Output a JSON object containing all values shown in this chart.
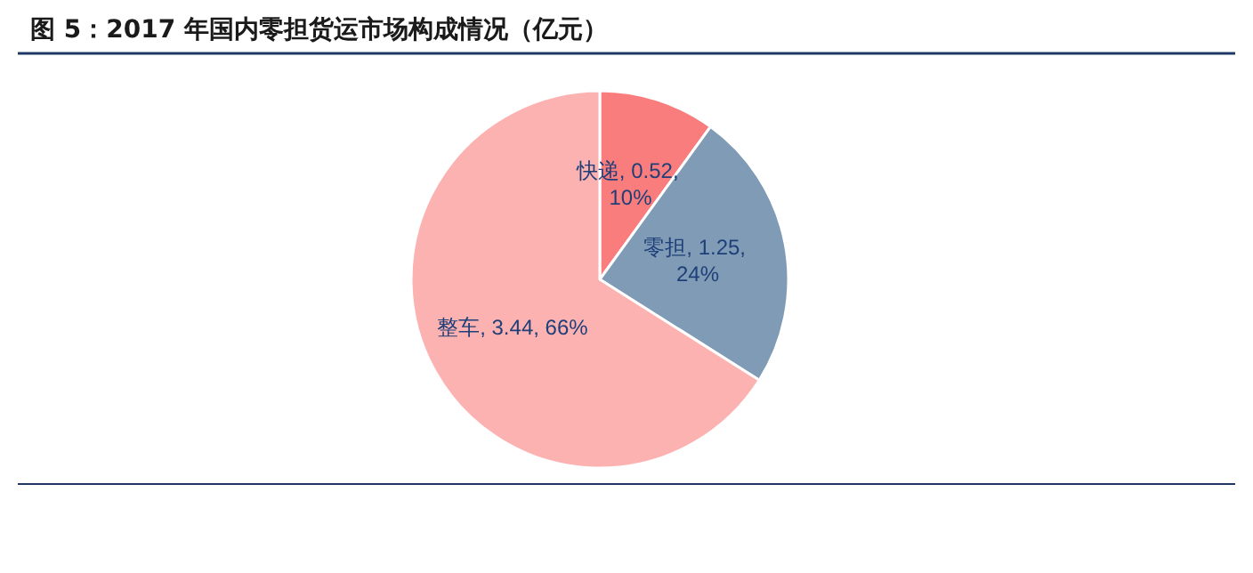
{
  "chart_data": {
    "type": "pie",
    "title": "图 5：2017 年国内零担货运市场构成情况（亿元）",
    "categories": [
      "快递",
      "零担",
      "整车"
    ],
    "values": [
      0.52,
      1.25,
      3.44
    ],
    "value_labels": [
      "0.52, 10%",
      "1.25, 24%",
      "3.44, 66%"
    ],
    "colors": [
      "#fa7d7d",
      "#7f9bb6",
      "#fdb2b2"
    ],
    "data_labels": true,
    "legend": false
  }
}
